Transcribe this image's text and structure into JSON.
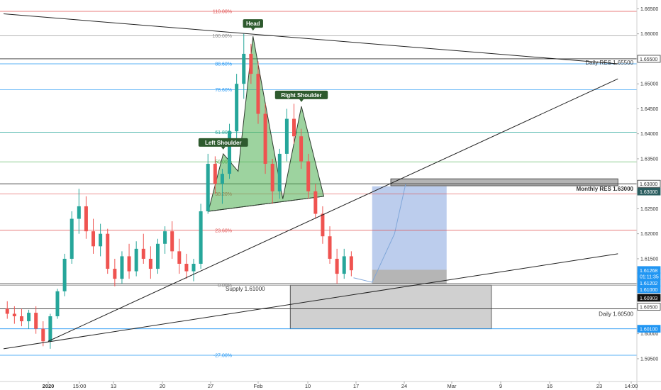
{
  "chart_data": {
    "type": "candlestick",
    "symbol_hint": "",
    "y_range": [
      1.5925,
      1.6665
    ],
    "price_ticks": [
      "1.65500",
      "1.65000",
      "1.64500",
      "1.64000",
      "1.63500",
      "1.63000",
      "1.62500",
      "1.62000",
      "1.61500",
      "1.61000",
      "1.60500",
      "1.60000",
      "1.59500",
      "1.66000",
      "1.66500"
    ],
    "date_ticks": [
      "2020",
      "15:00",
      "13",
      "20",
      "27",
      "Feb",
      "10",
      "17",
      "24",
      "Mar",
      "9",
      "16",
      "23",
      "14:00"
    ],
    "fib_levels": [
      {
        "label": "110.00%",
        "price": 1.6645,
        "color": "#e05050"
      },
      {
        "label": "100.00%",
        "price": 1.6596,
        "color": "#888888"
      },
      {
        "label": "88.60%",
        "price": 1.654,
        "color": "#2196f3"
      },
      {
        "label": "78.60%",
        "price": 1.6488,
        "color": "#2196f3"
      },
      {
        "label": "61.80%",
        "price": 1.6403,
        "color": "#26a69a"
      },
      {
        "label": "50.00%",
        "price": 1.6344,
        "color": "#4caf50"
      },
      {
        "label": "38.20%",
        "price": 1.628,
        "color": "#e05050"
      },
      {
        "label": "23.60%",
        "price": 1.6207,
        "color": "#e05050"
      },
      {
        "label": "0.00%",
        "price": 1.6097,
        "color": "#888888"
      },
      {
        "label": "-27.00%",
        "price": 1.5957,
        "color": "#2196f3"
      }
    ],
    "horizontal_levels": [
      {
        "name": "daily-res",
        "label": "Daily RES 1.65500",
        "price": 1.655
      },
      {
        "name": "monthly-res",
        "label": "Monthly RES 1.63000",
        "price": 1.63
      },
      {
        "name": "supply",
        "label": "Supply 1.61000",
        "price": 1.61
      },
      {
        "name": "daily-support",
        "label": "Daily 1.60500",
        "price": 1.605
      },
      {
        "name": "level-16010",
        "label": "",
        "price": 1.601
      }
    ],
    "price_badges": [
      {
        "text": "1.65500",
        "price": 1.655,
        "bg": "#ffffff",
        "fg": "#333333",
        "border": "#333333"
      },
      {
        "text": "1.63000",
        "price": 1.63,
        "bg": "#ffffff",
        "fg": "#333333",
        "border": "#333333"
      },
      {
        "text": "1.63000",
        "price": 1.62845,
        "bg": "#2a5d5f",
        "fg": "#ffffff",
        "border": "#2a5d5f"
      },
      {
        "text": "1.61268",
        "price": 1.61275,
        "bg": "#2196f3",
        "fg": "#ffffff",
        "border": "#2196f3"
      },
      {
        "text": "01:11:35",
        "price": 1.6115,
        "bg": "#2196f3",
        "fg": "#ffffff",
        "border": "#2196f3"
      },
      {
        "text": "1.61202",
        "price": 1.6102,
        "bg": "#2196f3",
        "fg": "#ffffff",
        "border": "#2196f3"
      },
      {
        "text": "1.61000",
        "price": 1.6089,
        "bg": "#2196f3",
        "fg": "#ffffff",
        "border": "#2196f3"
      },
      {
        "text": "1.60903",
        "price": 1.6072,
        "bg": "#111111",
        "fg": "#ffffff",
        "border": "#111111"
      },
      {
        "text": "1.60500",
        "price": 1.6054,
        "bg": "#ffffff",
        "fg": "#333333",
        "border": "#333333"
      },
      {
        "text": "1.60100",
        "price": 1.601,
        "bg": "#2196f3",
        "fg": "#ffffff",
        "border": "#2196f3"
      }
    ],
    "pattern_labels": {
      "left": "Left Shoulder",
      "head": "Head",
      "right": "Right Shoulder"
    },
    "pattern_points": [
      {
        "d": 27.5,
        "p": 1.6245
      },
      {
        "d": 29.5,
        "p": 1.636
      },
      {
        "d": 31.5,
        "p": 1.6325
      },
      {
        "d": 33.5,
        "p": 1.6595
      },
      {
        "d": 37.5,
        "p": 1.627
      },
      {
        "d": 40.0,
        "p": 1.6455
      },
      {
        "d": 43.0,
        "p": 1.6275
      }
    ],
    "neckline": [
      {
        "d": 27.5,
        "p": 1.6245
      },
      {
        "d": 43.0,
        "p": 1.6275
      }
    ],
    "trendlines": [
      {
        "from": {
          "d": 0,
          "p": 1.664
        },
        "to": {
          "d": 82.5,
          "p": 1.654
        }
      },
      {
        "from": {
          "d": 6,
          "p": 1.5985
        },
        "to": {
          "d": 82.5,
          "p": 1.651
        }
      },
      {
        "from": {
          "d": 0,
          "p": 1.597
        },
        "to": {
          "d": 82.5,
          "p": 1.616
        }
      }
    ],
    "long_position": {
      "d_start": 49.5,
      "d_end": 59.5,
      "entry": 1.6128,
      "target": 1.6295,
      "stop": 1.61
    },
    "demand_zone": {
      "d_start": 38.5,
      "d_end": 65.5,
      "top": 1.6097,
      "bottom": 1.601
    },
    "monthly_zone": {
      "d_start": 52.0,
      "d_end": 82.5,
      "top": 1.631,
      "bottom": 1.6296
    },
    "projection": [
      {
        "d": 47.0,
        "p": 1.6112
      },
      {
        "d": 49.5,
        "p": 1.6103
      },
      {
        "d": 52.5,
        "p": 1.62
      },
      {
        "d": 54.0,
        "p": 1.63
      }
    ],
    "candles": [
      {
        "o": 1.605,
        "h": 1.6065,
        "l": 1.603,
        "c": 1.604
      },
      {
        "o": 1.604,
        "h": 1.6055,
        "l": 1.602,
        "c": 1.6035
      },
      {
        "o": 1.6035,
        "h": 1.605,
        "l": 1.6015,
        "c": 1.6025
      },
      {
        "o": 1.6025,
        "h": 1.6048,
        "l": 1.601,
        "c": 1.6042
      },
      {
        "o": 1.6042,
        "h": 1.6055,
        "l": 1.6,
        "c": 1.601
      },
      {
        "o": 1.601,
        "h": 1.6025,
        "l": 1.5975,
        "c": 1.5985
      },
      {
        "o": 1.5985,
        "h": 1.604,
        "l": 1.597,
        "c": 1.6035
      },
      {
        "o": 1.6035,
        "h": 1.609,
        "l": 1.603,
        "c": 1.6085
      },
      {
        "o": 1.6085,
        "h": 1.616,
        "l": 1.6075,
        "c": 1.615
      },
      {
        "o": 1.615,
        "h": 1.6245,
        "l": 1.614,
        "c": 1.623
      },
      {
        "o": 1.623,
        "h": 1.629,
        "l": 1.62,
        "c": 1.6255
      },
      {
        "o": 1.6255,
        "h": 1.6275,
        "l": 1.619,
        "c": 1.6205
      },
      {
        "o": 1.6205,
        "h": 1.623,
        "l": 1.616,
        "c": 1.6175
      },
      {
        "o": 1.6175,
        "h": 1.622,
        "l": 1.6155,
        "c": 1.62
      },
      {
        "o": 1.62,
        "h": 1.621,
        "l": 1.612,
        "c": 1.613
      },
      {
        "o": 1.613,
        "h": 1.615,
        "l": 1.6095,
        "c": 1.611
      },
      {
        "o": 1.611,
        "h": 1.6165,
        "l": 1.61,
        "c": 1.6155
      },
      {
        "o": 1.6155,
        "h": 1.618,
        "l": 1.611,
        "c": 1.6125
      },
      {
        "o": 1.6125,
        "h": 1.6185,
        "l": 1.6115,
        "c": 1.617
      },
      {
        "o": 1.617,
        "h": 1.62,
        "l": 1.614,
        "c": 1.615
      },
      {
        "o": 1.615,
        "h": 1.6175,
        "l": 1.611,
        "c": 1.613
      },
      {
        "o": 1.613,
        "h": 1.619,
        "l": 1.612,
        "c": 1.618
      },
      {
        "o": 1.618,
        "h": 1.6215,
        "l": 1.616,
        "c": 1.6205
      },
      {
        "o": 1.6205,
        "h": 1.6225,
        "l": 1.615,
        "c": 1.6165
      },
      {
        "o": 1.6165,
        "h": 1.619,
        "l": 1.612,
        "c": 1.614
      },
      {
        "o": 1.614,
        "h": 1.616,
        "l": 1.611,
        "c": 1.6125
      },
      {
        "o": 1.6125,
        "h": 1.615,
        "l": 1.6105,
        "c": 1.614
      },
      {
        "o": 1.614,
        "h": 1.626,
        "l": 1.613,
        "c": 1.6245
      },
      {
        "o": 1.6245,
        "h": 1.636,
        "l": 1.624,
        "c": 1.634
      },
      {
        "o": 1.634,
        "h": 1.6355,
        "l": 1.628,
        "c": 1.63
      },
      {
        "o": 1.63,
        "h": 1.633,
        "l": 1.626,
        "c": 1.632
      },
      {
        "o": 1.632,
        "h": 1.642,
        "l": 1.631,
        "c": 1.6405
      },
      {
        "o": 1.6405,
        "h": 1.652,
        "l": 1.639,
        "c": 1.65
      },
      {
        "o": 1.65,
        "h": 1.66,
        "l": 1.647,
        "c": 1.656
      },
      {
        "o": 1.656,
        "h": 1.658,
        "l": 1.65,
        "c": 1.652
      },
      {
        "o": 1.652,
        "h": 1.6545,
        "l": 1.642,
        "c": 1.644
      },
      {
        "o": 1.644,
        "h": 1.646,
        "l": 1.632,
        "c": 1.634
      },
      {
        "o": 1.634,
        "h": 1.635,
        "l": 1.626,
        "c": 1.6285
      },
      {
        "o": 1.6285,
        "h": 1.637,
        "l": 1.627,
        "c": 1.636
      },
      {
        "o": 1.636,
        "h": 1.645,
        "l": 1.6345,
        "c": 1.643
      },
      {
        "o": 1.643,
        "h": 1.646,
        "l": 1.638,
        "c": 1.6395
      },
      {
        "o": 1.6395,
        "h": 1.641,
        "l": 1.633,
        "c": 1.6345
      },
      {
        "o": 1.6345,
        "h": 1.636,
        "l": 1.627,
        "c": 1.6285
      },
      {
        "o": 1.6285,
        "h": 1.63,
        "l": 1.623,
        "c": 1.624
      },
      {
        "o": 1.624,
        "h": 1.6255,
        "l": 1.618,
        "c": 1.6195
      },
      {
        "o": 1.6195,
        "h": 1.6215,
        "l": 1.614,
        "c": 1.615
      },
      {
        "o": 1.615,
        "h": 1.617,
        "l": 1.61,
        "c": 1.612
      },
      {
        "o": 1.612,
        "h": 1.617,
        "l": 1.611,
        "c": 1.6155
      },
      {
        "o": 1.6155,
        "h": 1.6165,
        "l": 1.6115,
        "c": 1.6127
      }
    ]
  }
}
